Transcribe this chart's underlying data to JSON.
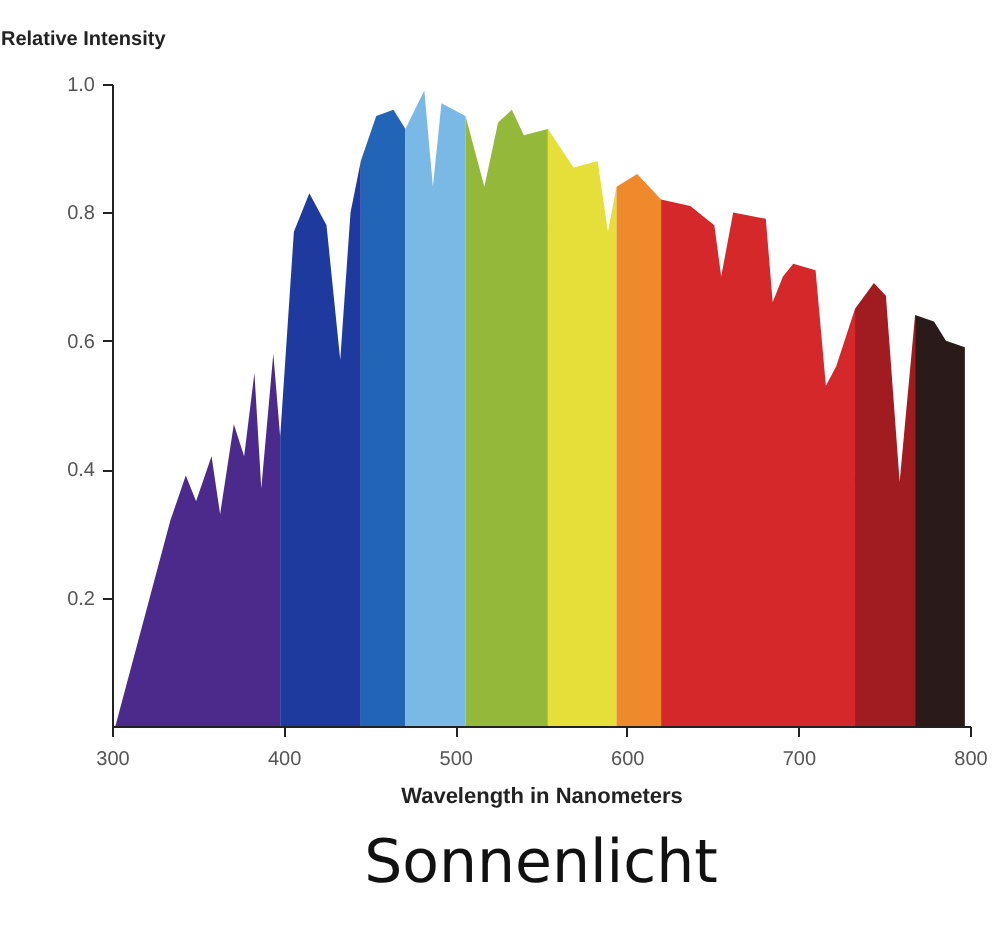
{
  "chart_data": {
    "type": "area",
    "title": "Sonnenlicht",
    "xlabel": "Wavelength in Nanometers",
    "ylabel": "Relative Intensity",
    "xlim": [
      300,
      800
    ],
    "xticks": [
      300,
      400,
      500,
      600,
      700,
      800
    ],
    "ylim": [
      0,
      1
    ],
    "yticks": [
      0.2,
      0.4,
      0.6,
      0.8,
      {
        "value": 1,
        "label": "1.0"
      }
    ],
    "series": [
      {
        "color": "#4b2a8c",
        "x": [
          302,
          334,
          343,
          349,
          358,
          363,
          371,
          377,
          383,
          387,
          394,
          398
        ],
        "values": [
          0,
          0.32,
          0.39,
          0.35,
          0.42,
          0.33,
          0.47,
          0.42,
          0.55,
          0.37,
          0.58,
          0.45
        ]
      },
      {
        "color": "#1e3a9e",
        "x": [
          398,
          406,
          415,
          425,
          433,
          439,
          445
        ],
        "values": [
          0.45,
          0.77,
          0.83,
          0.78,
          0.57,
          0.8,
          0.88
        ]
      },
      {
        "color": "#2264b6",
        "x": [
          445,
          454,
          464,
          471
        ],
        "values": [
          0.88,
          0.95,
          0.96,
          0.93
        ]
      },
      {
        "color": "#7ab8e6",
        "x": [
          471,
          482,
          487,
          492,
          506
        ],
        "values": [
          0.93,
          0.99,
          0.84,
          0.97,
          0.95
        ]
      },
      {
        "color": "#93b83a",
        "x": [
          506,
          517,
          525,
          533,
          540,
          554
        ],
        "values": [
          0.95,
          0.84,
          0.94,
          0.96,
          0.92,
          0.93
        ]
      },
      {
        "color": "#e6df3a",
        "x": [
          554,
          569,
          583,
          589,
          594
        ],
        "values": [
          0.93,
          0.87,
          0.88,
          0.77,
          0.84
        ]
      },
      {
        "color": "#ef8a2c",
        "x": [
          594,
          606,
          620
        ],
        "values": [
          0.84,
          0.86,
          0.82
        ]
      },
      {
        "color": "#d4282a",
        "x": [
          620,
          637,
          651,
          655,
          662,
          681,
          685,
          691,
          697,
          710,
          716,
          722,
          733
        ],
        "values": [
          0.82,
          0.81,
          0.78,
          0.7,
          0.8,
          0.79,
          0.66,
          0.7,
          0.72,
          0.71,
          0.53,
          0.56,
          0.65
        ]
      },
      {
        "color": "#a01c20",
        "x": [
          733,
          744,
          751,
          759,
          768
        ],
        "values": [
          0.65,
          0.69,
          0.67,
          0.38,
          0.64
        ]
      },
      {
        "color": "#2b1a1a",
        "x": [
          768,
          779,
          786,
          797
        ],
        "values": [
          0.64,
          0.63,
          0.6,
          0.59
        ]
      }
    ]
  }
}
